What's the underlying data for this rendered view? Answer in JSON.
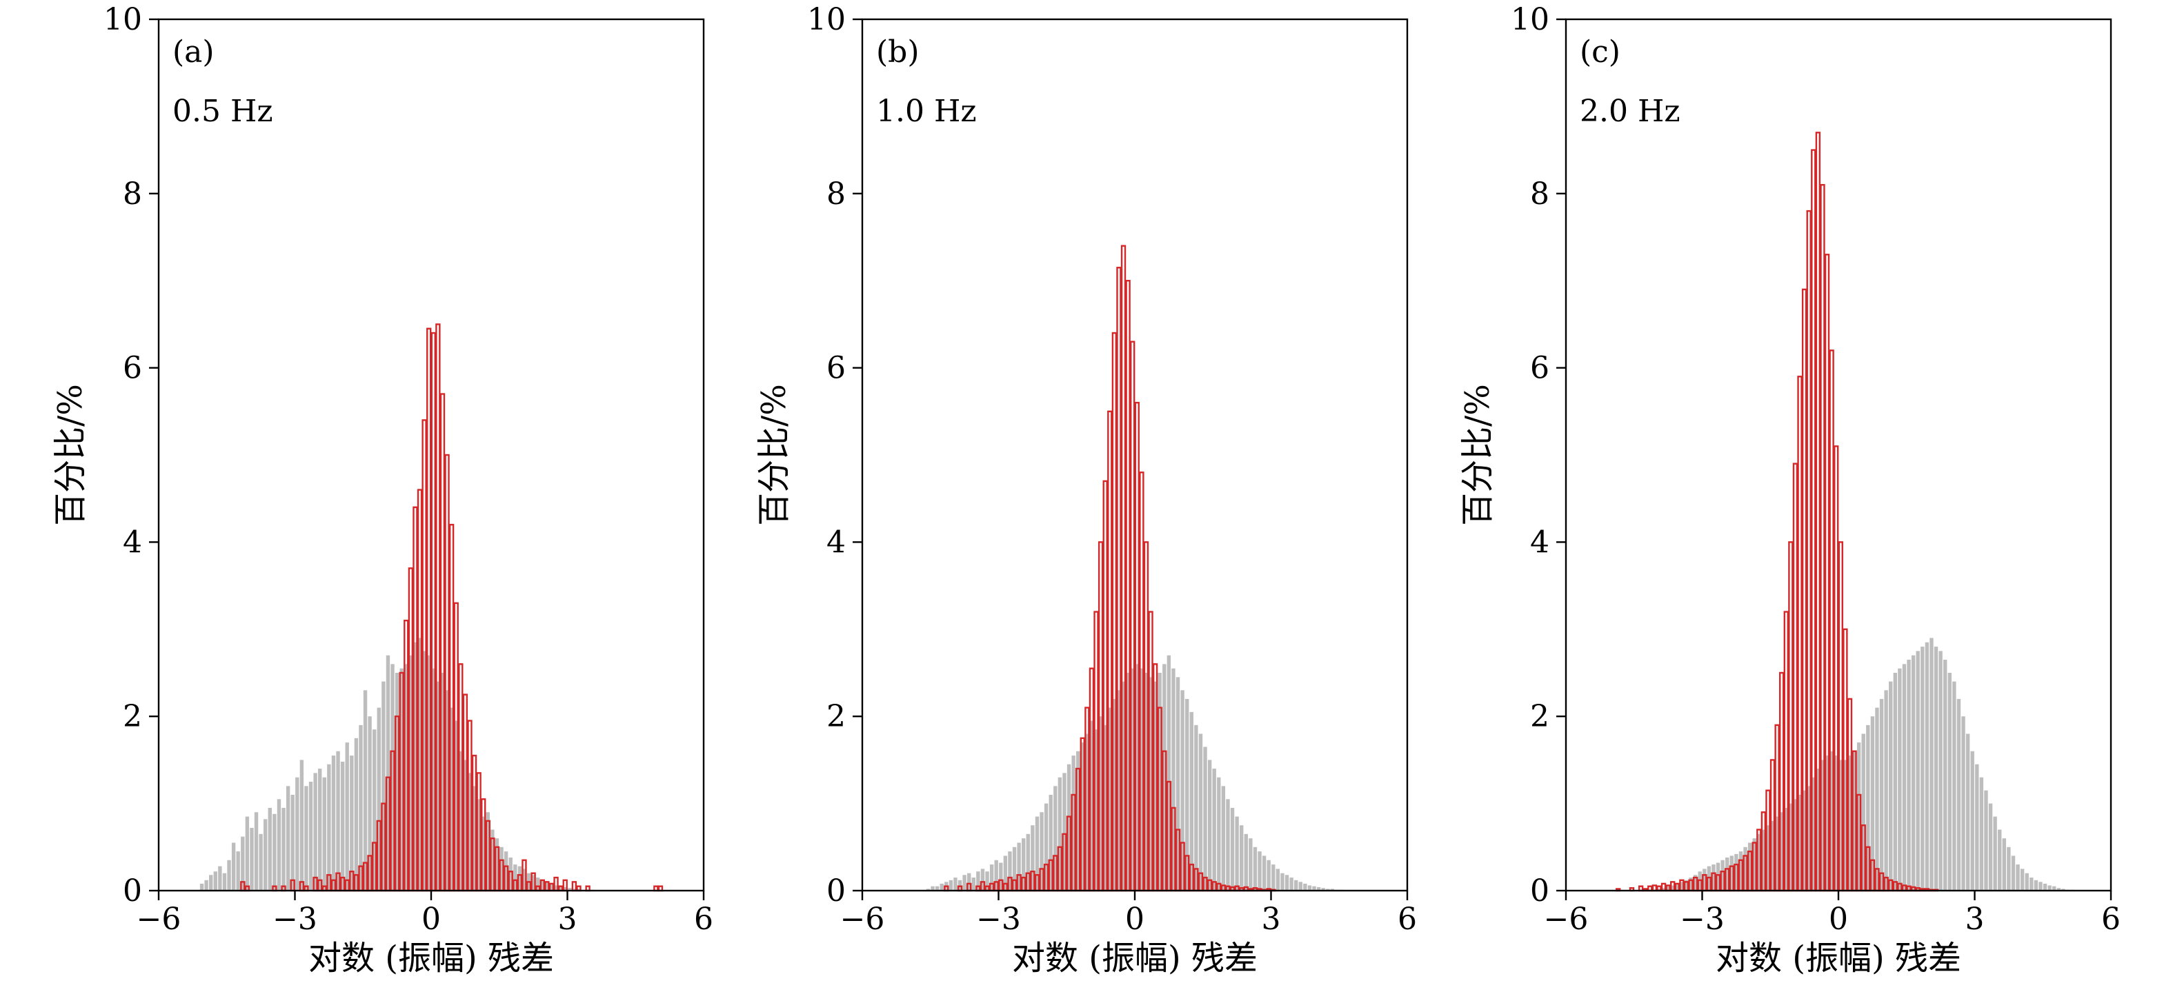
{
  "chart_data": [
    {
      "type": "bar",
      "panel_label": "(a)",
      "annotation": "0.5 Hz",
      "xlabel": "对数 (振幅) 残差",
      "ylabel": "百分比/%",
      "xlim": [
        -6,
        6
      ],
      "ylim": [
        0,
        10
      ],
      "xticks": [
        -6,
        -3,
        0,
        3,
        6
      ],
      "yticks": [
        0,
        2,
        4,
        6,
        8,
        10
      ],
      "xtick_labels": [
        "−6",
        "−3",
        "0",
        "3",
        "6"
      ],
      "ytick_labels": [
        "0",
        "2",
        "4",
        "6",
        "8",
        "10"
      ],
      "series": [
        {
          "style": "filled",
          "color": "#bdbdbd",
          "bin_start": -5.1,
          "bin_width": 0.1,
          "values": [
            0.08,
            0.12,
            0.18,
            0.22,
            0.28,
            0.2,
            0.35,
            0.55,
            0.45,
            0.62,
            0.85,
            0.72,
            0.9,
            0.65,
            0.82,
            0.95,
            0.88,
            1.05,
            0.95,
            1.2,
            1.1,
            1.3,
            1.5,
            1.2,
            1.25,
            1.35,
            1.4,
            1.3,
            1.45,
            1.55,
            1.6,
            1.48,
            1.7,
            1.55,
            1.75,
            1.9,
            2.3,
            2.0,
            1.85,
            2.1,
            2.4,
            2.7,
            2.6,
            2.5,
            2.55,
            2.6,
            2.7,
            2.85,
            2.9,
            2.75,
            2.7,
            2.55,
            2.4,
            2.5,
            2.3,
            2.1,
            1.95,
            1.6,
            1.5,
            1.35,
            1.2,
            1.05,
            0.85,
            0.9,
            0.7,
            0.6,
            0.5,
            0.45,
            0.38,
            0.3,
            0.28,
            0.25,
            0.2,
            0.18,
            0.15,
            0.12,
            0.1,
            0.08,
            0.06,
            0.05,
            0.04,
            0.03,
            0.02,
            0.02,
            0.01,
            0.01,
            0.01,
            0.0,
            0.0,
            0.0,
            0.0,
            0.0,
            0.0,
            0.0,
            0.0
          ]
        },
        {
          "style": "outline",
          "color": "#d62728",
          "bin_start": -4.5,
          "bin_width": 0.1,
          "values": [
            0.0,
            0.0,
            0.0,
            0.1,
            0.05,
            0.0,
            0.0,
            0.0,
            0.0,
            0.0,
            0.05,
            0.0,
            0.05,
            0.0,
            0.12,
            0.0,
            0.1,
            0.05,
            0.0,
            0.15,
            0.12,
            0.05,
            0.18,
            0.12,
            0.2,
            0.15,
            0.12,
            0.22,
            0.18,
            0.28,
            0.32,
            0.4,
            0.55,
            0.8,
            1.0,
            1.3,
            1.6,
            2.0,
            2.5,
            3.1,
            3.7,
            4.4,
            4.6,
            5.4,
            6.45,
            6.4,
            6.5,
            5.7,
            5.0,
            4.2,
            3.3,
            2.6,
            2.25,
            1.95,
            1.55,
            1.35,
            1.05,
            0.8,
            0.6,
            0.5,
            0.35,
            0.28,
            0.22,
            0.12,
            0.18,
            0.35,
            0.1,
            0.2,
            0.05,
            0.12,
            0.1,
            0.08,
            0.15,
            0.05,
            0.12,
            0.0,
            0.1,
            0.05,
            0.0,
            0.05,
            0.0,
            0.0,
            0.0,
            0.0,
            0.0,
            0.0,
            0.0,
            0.0,
            0.0,
            0.0,
            0.0,
            0.0,
            0.0,
            0.0,
            0.05,
            0.05
          ]
        }
      ]
    },
    {
      "type": "bar",
      "panel_label": "(b)",
      "annotation": "1.0 Hz",
      "xlabel": "对数 (振幅) 残差",
      "ylabel": "百分比/%",
      "xlim": [
        -6,
        6
      ],
      "ylim": [
        0,
        10
      ],
      "xticks": [
        -6,
        -3,
        0,
        3,
        6
      ],
      "yticks": [
        0,
        2,
        4,
        6,
        8,
        10
      ],
      "xtick_labels": [
        "−6",
        "−3",
        "0",
        "3",
        "6"
      ],
      "ytick_labels": [
        "0",
        "2",
        "4",
        "6",
        "8",
        "10"
      ],
      "series": [
        {
          "style": "filled",
          "color": "#bdbdbd",
          "bin_start": -4.6,
          "bin_width": 0.1,
          "values": [
            0.02,
            0.05,
            0.05,
            0.08,
            0.1,
            0.12,
            0.15,
            0.12,
            0.18,
            0.2,
            0.15,
            0.22,
            0.25,
            0.22,
            0.3,
            0.35,
            0.32,
            0.4,
            0.45,
            0.5,
            0.55,
            0.6,
            0.65,
            0.75,
            0.85,
            0.9,
            1.0,
            1.1,
            1.2,
            1.3,
            1.35,
            1.45,
            1.55,
            1.6,
            1.7,
            1.8,
            1.95,
            1.85,
            2.0,
            1.9,
            2.1,
            2.2,
            2.3,
            2.4,
            2.5,
            2.55,
            2.6,
            2.55,
            2.5,
            2.45,
            2.4,
            2.5,
            2.6,
            2.7,
            2.55,
            2.45,
            2.3,
            2.2,
            2.05,
            1.9,
            1.8,
            1.65,
            1.5,
            1.4,
            1.3,
            1.2,
            1.05,
            0.95,
            0.85,
            0.75,
            0.65,
            0.6,
            0.5,
            0.45,
            0.4,
            0.35,
            0.3,
            0.25,
            0.2,
            0.18,
            0.15,
            0.12,
            0.1,
            0.08,
            0.06,
            0.05,
            0.04,
            0.03,
            0.02,
            0.02,
            0.01,
            0.01,
            0.0,
            0.0
          ]
        },
        {
          "style": "outline",
          "color": "#d62728",
          "bin_start": -4.4,
          "bin_width": 0.1,
          "values": [
            0.0,
            0.0,
            0.05,
            0.0,
            0.0,
            0.05,
            0.0,
            0.08,
            0.0,
            0.05,
            0.1,
            0.05,
            0.08,
            0.1,
            0.12,
            0.08,
            0.15,
            0.12,
            0.18,
            0.15,
            0.2,
            0.22,
            0.18,
            0.25,
            0.3,
            0.35,
            0.4,
            0.5,
            0.65,
            0.85,
            1.1,
            1.4,
            1.75,
            2.1,
            2.55,
            3.2,
            4.0,
            4.7,
            5.5,
            6.4,
            7.15,
            7.4,
            7.0,
            6.3,
            5.6,
            4.8,
            4.0,
            3.2,
            2.6,
            2.1,
            1.6,
            1.25,
            0.95,
            0.7,
            0.55,
            0.4,
            0.3,
            0.25,
            0.2,
            0.15,
            0.12,
            0.1,
            0.08,
            0.06,
            0.05,
            0.04,
            0.05,
            0.03,
            0.04,
            0.02,
            0.03,
            0.02,
            0.01,
            0.02,
            0.01,
            0.0,
            0.0,
            0.0,
            0.0,
            0.0,
            0.0,
            0.0,
            0.0,
            0.0,
            0.0,
            0.0,
            0.0,
            0.0,
            0.0,
            0.0,
            0.0,
            0.0,
            0.0,
            0.0,
            0.0,
            0.0,
            0.0,
            0.0,
            0.0
          ]
        }
      ]
    },
    {
      "type": "bar",
      "panel_label": "(c)",
      "annotation": "2.0 Hz",
      "xlabel": "对数 (振幅) 残差",
      "ylabel": "百分比/%",
      "xlim": [
        -6,
        6
      ],
      "ylim": [
        0,
        10
      ],
      "xticks": [
        -6,
        -3,
        0,
        3,
        6
      ],
      "yticks": [
        0,
        2,
        4,
        6,
        8,
        10
      ],
      "xtick_labels": [
        "−6",
        "−3",
        "0",
        "3",
        "6"
      ],
      "ytick_labels": [
        "0",
        "2",
        "4",
        "6",
        "8",
        "10"
      ],
      "series": [
        {
          "style": "filled",
          "color": "#bdbdbd",
          "bin_start": -4.0,
          "bin_width": 0.1,
          "values": [
            0.02,
            0.03,
            0.05,
            0.06,
            0.08,
            0.1,
            0.12,
            0.15,
            0.18,
            0.22,
            0.25,
            0.28,
            0.3,
            0.32,
            0.35,
            0.38,
            0.4,
            0.42,
            0.45,
            0.5,
            0.55,
            0.6,
            0.65,
            0.7,
            0.75,
            0.8,
            0.85,
            0.9,
            0.95,
            1.0,
            1.05,
            1.1,
            1.15,
            1.2,
            1.3,
            1.4,
            1.5,
            1.55,
            1.6,
            1.55,
            1.5,
            1.5,
            1.55,
            1.6,
            1.7,
            1.8,
            1.9,
            2.0,
            2.1,
            2.2,
            2.3,
            2.4,
            2.5,
            2.55,
            2.6,
            2.65,
            2.7,
            2.75,
            2.8,
            2.85,
            2.9,
            2.8,
            2.75,
            2.65,
            2.5,
            2.4,
            2.2,
            2.0,
            1.8,
            1.6,
            1.45,
            1.3,
            1.15,
            1.0,
            0.85,
            0.7,
            0.6,
            0.5,
            0.4,
            0.3,
            0.25,
            0.2,
            0.15,
            0.12,
            0.1,
            0.08,
            0.06,
            0.05,
            0.03,
            0.02,
            0.01,
            0.01,
            0.0,
            0.0,
            0.0,
            0.0
          ]
        },
        {
          "style": "outline",
          "color": "#d62728",
          "bin_start": -5.0,
          "bin_width": 0.1,
          "values": [
            0.0,
            0.02,
            0.0,
            0.0,
            0.03,
            0.0,
            0.05,
            0.02,
            0.05,
            0.06,
            0.05,
            0.08,
            0.06,
            0.1,
            0.08,
            0.12,
            0.1,
            0.12,
            0.15,
            0.12,
            0.18,
            0.15,
            0.2,
            0.18,
            0.22,
            0.25,
            0.28,
            0.3,
            0.35,
            0.4,
            0.45,
            0.55,
            0.7,
            0.9,
            1.15,
            1.5,
            1.9,
            2.5,
            3.2,
            4.0,
            4.9,
            5.9,
            6.9,
            7.8,
            8.5,
            8.7,
            8.1,
            7.3,
            6.2,
            5.1,
            4.0,
            3.0,
            2.2,
            1.6,
            1.1,
            0.75,
            0.5,
            0.35,
            0.25,
            0.2,
            0.15,
            0.12,
            0.1,
            0.08,
            0.06,
            0.05,
            0.04,
            0.03,
            0.02,
            0.02,
            0.01,
            0.01,
            0.0,
            0.0,
            0.0,
            0.0,
            0.0,
            0.0,
            0.0,
            0.0,
            0.0,
            0.0,
            0.0,
            0.0,
            0.0,
            0.0,
            0.0,
            0.0,
            0.0,
            0.0,
            0.0,
            0.0,
            0.0,
            0.0,
            0.0
          ]
        }
      ]
    }
  ]
}
